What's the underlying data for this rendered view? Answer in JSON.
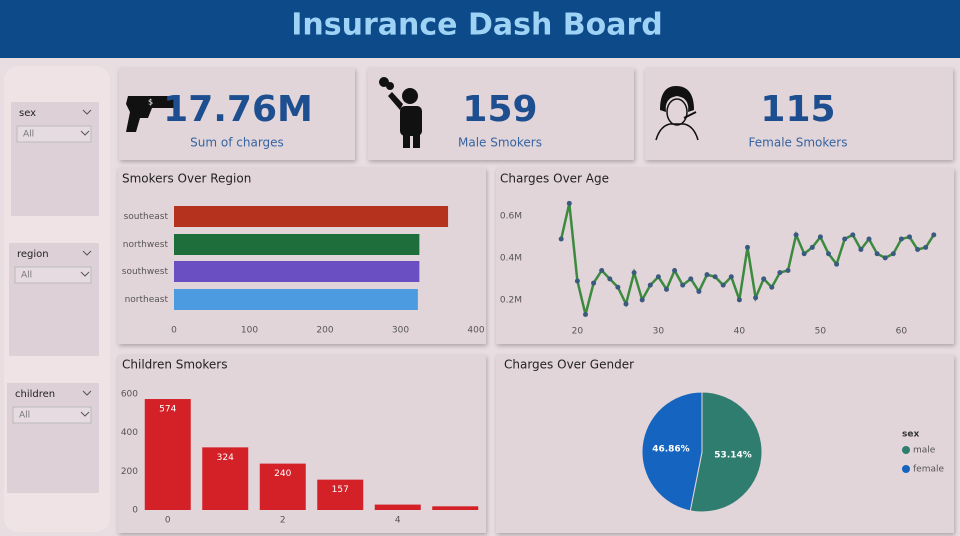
{
  "header": {
    "title": "Insurance Dash Board"
  },
  "kpis": [
    {
      "value": 17760000,
      "value_label": "17.76M",
      "label": "Sum of charges"
    },
    {
      "value": 159,
      "label": "Male Smokers"
    },
    {
      "value": 115,
      "label": "Female Smokers"
    }
  ],
  "slicers": [
    {
      "label": "sex",
      "selection": "All"
    },
    {
      "label": "region",
      "selection": "All"
    },
    {
      "label": "children",
      "selection": "All"
    }
  ],
  "chart_data": [
    {
      "type": "bar",
      "orientation": "horizontal",
      "title": "Smokers Over Region",
      "categories": [
        "southeast",
        "northwest",
        "southwest",
        "northeast"
      ],
      "values": [
        363,
        325,
        325,
        323
      ],
      "colors": [
        "#b5321e",
        "#1d6e3a",
        "#6a4fc2",
        "#4c9be0"
      ],
      "xlim": [
        0,
        400
      ],
      "xticks": [
        0,
        100,
        200,
        300,
        400
      ],
      "grid": false
    },
    {
      "type": "line",
      "title": "Charges Over Age",
      "x": [
        18,
        19,
        20,
        21,
        22,
        23,
        24,
        25,
        26,
        27,
        28,
        29,
        30,
        31,
        32,
        33,
        34,
        35,
        36,
        37,
        38,
        39,
        40,
        41,
        42,
        43,
        44,
        45,
        46,
        47,
        48,
        49,
        50,
        51,
        52,
        53,
        54,
        55,
        56,
        57,
        58,
        59,
        60,
        61,
        62,
        63,
        64
      ],
      "series": [
        {
          "name": "charges",
          "color": "#3b8a3e",
          "marker_color": "#3b5a80",
          "values": [
            0.49,
            0.66,
            0.29,
            0.13,
            0.28,
            0.34,
            0.3,
            0.26,
            0.18,
            0.33,
            0.2,
            0.27,
            0.31,
            0.25,
            0.34,
            0.27,
            0.3,
            0.24,
            0.32,
            0.31,
            0.27,
            0.31,
            0.2,
            0.45,
            0.21,
            0.3,
            0.26,
            0.33,
            0.34,
            0.51,
            0.42,
            0.45,
            0.5,
            0.42,
            0.37,
            0.49,
            0.51,
            0.44,
            0.49,
            0.42,
            0.4,
            0.42,
            0.49,
            0.5,
            0.44,
            0.45,
            0.51
          ]
        }
      ],
      "xlim": [
        16,
        66
      ],
      "xticks": [
        20,
        30,
        40,
        50,
        60
      ],
      "ylim": [
        0.08,
        0.7
      ],
      "yticks": [
        {
          "value": 0.2,
          "label": "0.2M"
        },
        {
          "value": 0.4,
          "label": "0.4M"
        },
        {
          "value": 0.6,
          "label": "0.6M"
        }
      ],
      "grid": false
    },
    {
      "type": "bar",
      "orientation": "vertical",
      "title": "Children Smokers",
      "categories": [
        0,
        null,
        2,
        null,
        4,
        null
      ],
      "values": [
        574,
        324,
        240,
        157,
        28,
        19
      ],
      "value_labels": [
        "574",
        "324",
        "240",
        "157",
        null,
        null
      ],
      "color": "#d42027",
      "ylim": [
        0,
        600
      ],
      "yticks": [
        0,
        200,
        400,
        600
      ],
      "grid": false
    },
    {
      "type": "pie",
      "title": "Charges Over Gender",
      "categories": [
        "male",
        "female"
      ],
      "values": [
        53.14,
        46.86
      ],
      "value_labels": [
        "53.14%",
        "46.86%"
      ],
      "colors": [
        "#2e7d6e",
        "#1565c0"
      ],
      "legend_title": "sex",
      "legend": "right"
    }
  ]
}
